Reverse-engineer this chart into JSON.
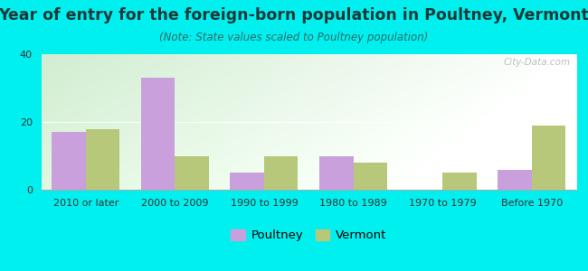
{
  "title": "Year of entry for the foreign-born population in Poultney, Vermont",
  "subtitle": "(Note: State values scaled to Poultney population)",
  "categories": [
    "2010 or later",
    "2000 to 2009",
    "1990 to 1999",
    "1980 to 1989",
    "1970 to 1979",
    "Before 1970"
  ],
  "poultney_values": [
    17,
    33,
    5,
    10,
    0,
    6
  ],
  "vermont_values": [
    18,
    10,
    10,
    8,
    5,
    19
  ],
  "poultney_color": "#c9a0dc",
  "vermont_color": "#b8c87a",
  "ylim": [
    0,
    40
  ],
  "yticks": [
    0,
    20,
    40
  ],
  "bar_width": 0.38,
  "bg_outer": "#00f0f0",
  "title_fontsize": 12.5,
  "subtitle_fontsize": 8.5,
  "tick_fontsize": 8.0,
  "legend_fontsize": 9.5,
  "title_color": "#1a3a3a",
  "subtitle_color": "#2a6a6a"
}
